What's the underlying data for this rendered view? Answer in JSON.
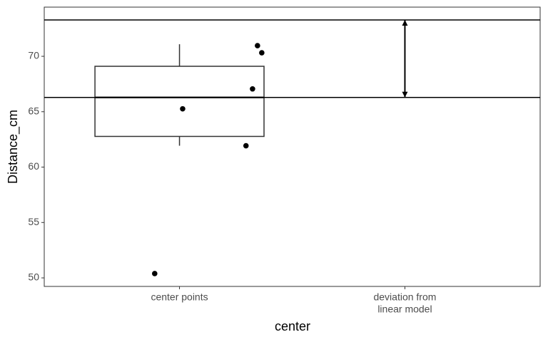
{
  "chart_data": {
    "type": "box",
    "x_label": "center",
    "y_label": "Distance_cm",
    "categories": [
      [
        "center points"
      ],
      [
        "deviation from",
        "linear model"
      ]
    ],
    "xlim": [
      0.4,
      2.6
    ],
    "ylim": [
      49.23,
      74.44
    ],
    "yticks": [
      50,
      55,
      60,
      65,
      70
    ],
    "grid": false,
    "box": {
      "whisker_low": 61.93,
      "q1": 62.77,
      "median": 66.29,
      "q3": 69.1,
      "whisker_high": 71.09,
      "color": "#333333"
    },
    "points": {
      "x": [
        0.89,
        1.014,
        1.295,
        1.324,
        1.346,
        1.365
      ],
      "values": [
        50.39,
        65.26,
        61.93,
        67.06,
        70.96,
        70.32
      ],
      "color": "#000000"
    },
    "hlines": [
      73.28,
      66.29
    ]
  }
}
